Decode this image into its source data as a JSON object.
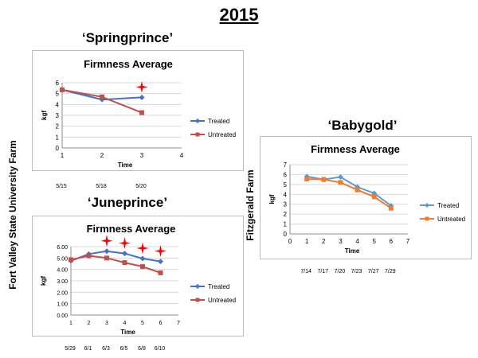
{
  "slide_title": "2015",
  "farm_labels": [
    "Fort Valley State University Farm",
    "Fitzgerald Farm"
  ],
  "charts": [
    {
      "label": "‘Springprince’",
      "dates": [
        "5/15",
        "5/18",
        "5/20"
      ],
      "markers": [
        3
      ]
    },
    {
      "label": "‘Juneprince’",
      "dates": [
        "5/29",
        "6/1",
        "6/3",
        "6/5",
        "6/8",
        "6/10"
      ],
      "markers": [
        3,
        4,
        5,
        6
      ]
    },
    {
      "label": "‘Babygold’",
      "dates": [
        "7/14",
        "7/17",
        "7/20",
        "7/23",
        "7/27",
        "7/29"
      ],
      "markers": []
    }
  ],
  "colors": {
    "springprince_treated": "#4472C4",
    "springprince_untreated": "#C0504D",
    "babygold_treated": "#5B9BD5",
    "babygold_untreated": "#ED7D31",
    "significance_star": "#FF0000"
  },
  "chart_data": [
    {
      "type": "line",
      "title": "Firmness Average",
      "xlabel": "Time",
      "ylabel": "kgf",
      "xlim": [
        1,
        4
      ],
      "ylim": [
        0,
        6
      ],
      "x_ticks": [
        "1",
        "2",
        "3",
        "4"
      ],
      "y_ticks": [
        "0",
        "1",
        "2",
        "3",
        "4",
        "5",
        "6"
      ],
      "grid": true,
      "legend": "right",
      "series": [
        {
          "name": "Treated",
          "marker": "diamond",
          "x": [
            1,
            2,
            3
          ],
          "values": [
            5.35,
            4.45,
            4.65
          ]
        },
        {
          "name": "Untreated",
          "marker": "square",
          "x": [
            1,
            2,
            3
          ],
          "values": [
            5.35,
            4.7,
            3.25
          ]
        }
      ]
    },
    {
      "type": "line",
      "title": "Firmness Average",
      "xlabel": "Time",
      "ylabel": "kgf",
      "xlim": [
        1,
        7
      ],
      "ylim": [
        0,
        6
      ],
      "x_ticks": [
        "1",
        "2",
        "3",
        "4",
        "5",
        "6",
        "7"
      ],
      "y_ticks": [
        "0.00",
        "1.00",
        "2.00",
        "3.00",
        "4.00",
        "5.00",
        "6.00"
      ],
      "grid": true,
      "legend": "right",
      "series": [
        {
          "name": "Treated",
          "marker": "diamond",
          "x": [
            1,
            2,
            3,
            4,
            5,
            6
          ],
          "values": [
            4.75,
            5.35,
            5.6,
            5.4,
            4.95,
            4.7
          ]
        },
        {
          "name": "Untreated",
          "marker": "square",
          "x": [
            1,
            2,
            3,
            4,
            5,
            6
          ],
          "values": [
            4.85,
            5.2,
            5.0,
            4.6,
            4.25,
            3.7
          ]
        }
      ]
    },
    {
      "type": "line",
      "title": "Firmness Average",
      "xlabel": "Time",
      "ylabel": "kgf",
      "xlim": [
        0,
        7
      ],
      "ylim": [
        0,
        7
      ],
      "x_ticks": [
        "0",
        "1",
        "2",
        "3",
        "4",
        "5",
        "6",
        "7"
      ],
      "y_ticks": [
        "0",
        "1",
        "2",
        "3",
        "4",
        "5",
        "6",
        "7"
      ],
      "grid": true,
      "legend": "right",
      "series": [
        {
          "name": "Treated",
          "marker": "diamond",
          "x": [
            1,
            2,
            3,
            4,
            5,
            6
          ],
          "values": [
            5.8,
            5.5,
            5.75,
            4.75,
            4.1,
            2.85
          ]
        },
        {
          "name": "Untreated",
          "marker": "square",
          "x": [
            1,
            2,
            3,
            4,
            5,
            6
          ],
          "values": [
            5.55,
            5.5,
            5.2,
            4.45,
            3.75,
            2.6
          ]
        }
      ]
    }
  ]
}
